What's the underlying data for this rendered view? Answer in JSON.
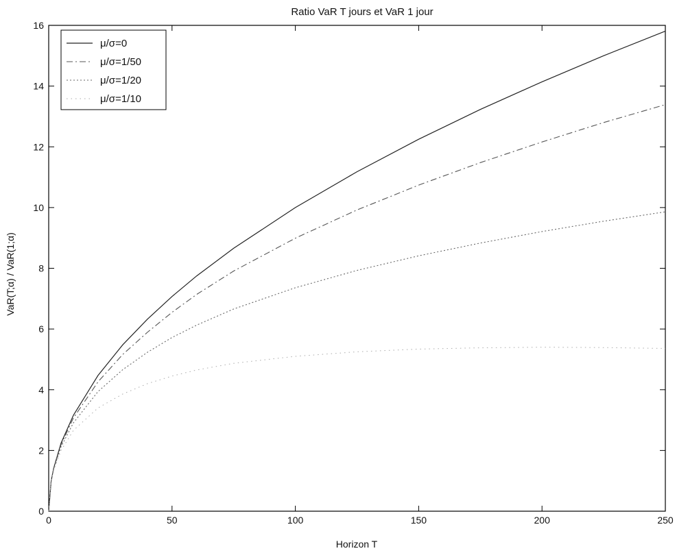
{
  "chart_data": {
    "type": "line",
    "title": "Ratio VaR T jours et VaR 1 jour",
    "xlabel": "Horizon T",
    "ylabel": "VaR(T;α) / VaR(1;α)",
    "xlim": [
      0,
      250
    ],
    "ylim": [
      0,
      16
    ],
    "xticks": [
      0,
      50,
      100,
      150,
      200,
      250
    ],
    "yticks": [
      0,
      2,
      4,
      6,
      8,
      10,
      12,
      14,
      16
    ],
    "grid": false,
    "legend_position": "top-left",
    "x": [
      1,
      2,
      5,
      10,
      20,
      30,
      40,
      50,
      60,
      75,
      100,
      125,
      150,
      175,
      200,
      225,
      250
    ],
    "series": [
      {
        "name": "μ/σ=0",
        "style": "solid",
        "values": [
          1.0,
          1.41,
          2.24,
          3.16,
          4.47,
          5.48,
          6.32,
          7.07,
          7.75,
          8.66,
          10.0,
          11.18,
          12.25,
          13.23,
          14.14,
          15.0,
          15.81
        ]
      },
      {
        "name": "μ/σ=1/50",
        "style": "dashdot",
        "values": [
          1.0,
          1.4,
          2.19,
          3.07,
          4.26,
          5.16,
          5.89,
          6.55,
          7.14,
          7.91,
          8.99,
          9.92,
          10.74,
          11.48,
          12.16,
          12.8,
          13.39
        ]
      },
      {
        "name": "μ/σ=1/20",
        "style": "dotted",
        "values": [
          1.0,
          1.38,
          2.12,
          2.91,
          3.94,
          4.66,
          5.23,
          5.72,
          6.13,
          6.66,
          7.36,
          7.93,
          8.41,
          8.83,
          9.21,
          9.55,
          9.86
        ]
      },
      {
        "name": "μ/σ=1/10",
        "style": "dotted-faint",
        "values": [
          1.0,
          1.35,
          2.0,
          2.66,
          3.4,
          3.86,
          4.2,
          4.45,
          4.65,
          4.87,
          5.1,
          5.25,
          5.34,
          5.38,
          5.4,
          5.39,
          5.36
        ]
      }
    ]
  }
}
